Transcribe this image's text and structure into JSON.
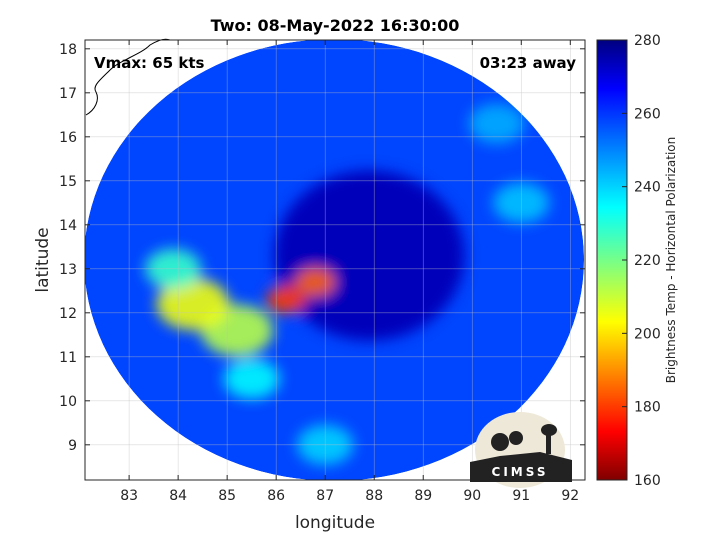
{
  "chart_data": {
    "type": "heatmap",
    "title": "Two: 08-May-2022 16:30:00",
    "xlabel": "longitude",
    "ylabel": "latitude",
    "xlim": [
      82.1,
      92.3
    ],
    "ylim": [
      8.2,
      18.2
    ],
    "xticks": [
      83,
      84,
      85,
      86,
      87,
      88,
      89,
      90,
      91,
      92
    ],
    "yticks": [
      9,
      10,
      11,
      12,
      13,
      14,
      15,
      16,
      17,
      18
    ],
    "grid": true,
    "annotations": {
      "left": "Vmax: 65 kts",
      "right": "03:23 away"
    },
    "colorbar": {
      "label": "Brightness Temp - Horizontal Polarization",
      "range": [
        160,
        280
      ],
      "ticks": [
        160,
        180,
        200,
        220,
        240,
        260,
        280
      ],
      "colormap": "jet",
      "position": "right"
    },
    "swath_center": [
      87.1,
      13.2
    ],
    "storm_center": [
      87.9,
      13.3
    ],
    "warm_background_temp": 266,
    "cold_features": [
      {
        "lon": 85.2,
        "lat": 11.6,
        "temp": 212
      },
      {
        "lon": 84.3,
        "lat": 12.2,
        "temp": 205
      },
      {
        "lon": 86.2,
        "lat": 12.3,
        "temp": 180
      },
      {
        "lon": 86.8,
        "lat": 12.7,
        "temp": 185
      },
      {
        "lon": 83.9,
        "lat": 13.0,
        "temp": 228
      },
      {
        "lon": 85.5,
        "lat": 10.5,
        "temp": 235
      },
      {
        "lon": 87.0,
        "lat": 9.0,
        "temp": 240
      },
      {
        "lon": 91.0,
        "lat": 14.5,
        "temp": 242
      },
      {
        "lon": 90.5,
        "lat": 16.3,
        "temp": 245
      }
    ]
  },
  "logo": {
    "text": "CIMSS"
  }
}
